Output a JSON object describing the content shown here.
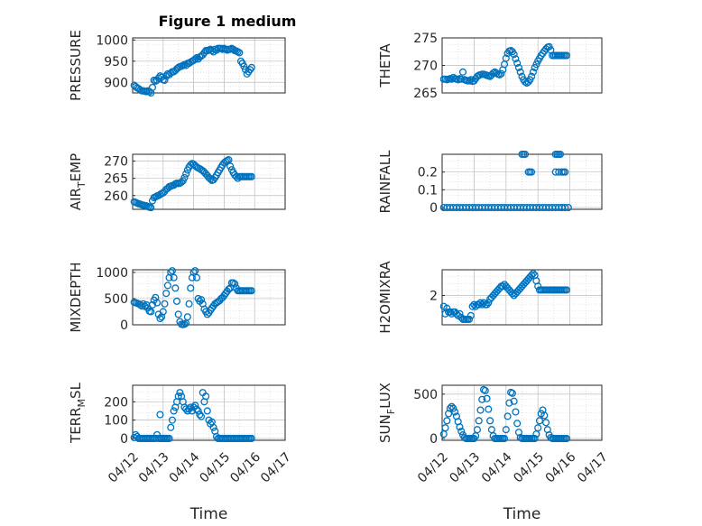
{
  "figure_title": "Figure 1 medium",
  "colors": {
    "marker": "#0072BD",
    "axis": "#262626",
    "grid": "#D0D0D0"
  },
  "chart_data": [
    {
      "type": "scatter",
      "ylabel": "PRESSURE",
      "ylabel_sub": "",
      "yticks": [
        900,
        950,
        1000
      ],
      "ylim": [
        875,
        1005
      ],
      "xticks": [],
      "xlabel": "",
      "xlim": [
        0,
        5
      ],
      "x": [
        0.05,
        0.1,
        0.15,
        0.2,
        0.25,
        0.3,
        0.35,
        0.4,
        0.45,
        0.5,
        0.55,
        0.6,
        0.65,
        0.7,
        0.75,
        0.8,
        0.85,
        0.9,
        0.95,
        1.0,
        1.05,
        1.1,
        1.15,
        1.2,
        1.25,
        1.3,
        1.35,
        1.4,
        1.45,
        1.5,
        1.55,
        1.6,
        1.65,
        1.7,
        1.75,
        1.8,
        1.85,
        1.9,
        1.95,
        2.0,
        2.05,
        2.1,
        2.15,
        2.2,
        2.25,
        2.3,
        2.35,
        2.4,
        2.45,
        2.5,
        2.55,
        2.6,
        2.65,
        2.7,
        2.75,
        2.8,
        2.85,
        2.9,
        2.95,
        3.0,
        3.05,
        3.1,
        3.15,
        3.2,
        3.25,
        3.3,
        3.35,
        3.4,
        3.45,
        3.5,
        3.55,
        3.6,
        3.65,
        3.7,
        3.75,
        3.8,
        3.85,
        3.9
      ],
      "y": [
        893,
        890,
        887,
        885,
        882,
        880,
        880,
        879,
        878,
        880,
        878,
        875,
        888,
        905,
        903,
        905,
        910,
        915,
        912,
        906,
        905,
        915,
        920,
        918,
        922,
        925,
        925,
        928,
        932,
        935,
        937,
        938,
        940,
        942,
        940,
        945,
        945,
        948,
        950,
        952,
        955,
        958,
        955,
        960,
        962,
        965,
        970,
        975,
        975,
        976,
        978,
        975,
        972,
        978,
        976,
        980,
        980,
        980,
        978,
        980,
        978,
        976,
        978,
        978,
        980,
        978,
        975,
        974,
        972,
        970,
        950,
        945,
        938,
        930,
        920,
        925,
        930,
        935
      ]
    },
    {
      "type": "scatter",
      "ylabel": "THETA",
      "ylabel_sub": "",
      "yticks": [
        265,
        270,
        275
      ],
      "ylim": [
        265,
        275
      ],
      "xticks": [],
      "xlabel": "",
      "xlim": [
        0,
        5
      ],
      "x": [
        0.05,
        0.1,
        0.15,
        0.2,
        0.25,
        0.3,
        0.35,
        0.4,
        0.45,
        0.5,
        0.55,
        0.6,
        0.65,
        0.7,
        0.75,
        0.8,
        0.85,
        0.9,
        0.95,
        1.0,
        1.05,
        1.1,
        1.15,
        1.2,
        1.25,
        1.3,
        1.35,
        1.4,
        1.45,
        1.5,
        1.55,
        1.6,
        1.65,
        1.7,
        1.75,
        1.8,
        1.85,
        1.9,
        1.95,
        2.0,
        2.05,
        2.1,
        2.15,
        2.2,
        2.25,
        2.3,
        2.35,
        2.4,
        2.45,
        2.5,
        2.55,
        2.6,
        2.65,
        2.7,
        2.75,
        2.8,
        2.85,
        2.9,
        2.95,
        3.0,
        3.05,
        3.1,
        3.15,
        3.2,
        3.25,
        3.3,
        3.35,
        3.4,
        3.45,
        3.5,
        3.55,
        3.6,
        3.65,
        3.7,
        3.75,
        3.8,
        3.85,
        3.9
      ],
      "y": [
        267.5,
        267.5,
        267.4,
        267.5,
        267.6,
        267.5,
        267.8,
        267.6,
        267.5,
        267.4,
        267.6,
        267.5,
        268.8,
        267.4,
        267.3,
        267.2,
        267.2,
        267.4,
        267.1,
        267.2,
        267.6,
        268.0,
        268.2,
        268.3,
        268.4,
        268.4,
        268.3,
        268.2,
        268.1,
        268.0,
        268.3,
        268.6,
        268.8,
        268.6,
        268.4,
        268.3,
        268.5,
        269.2,
        270.2,
        271.3,
        272.2,
        272.6,
        272.7,
        272.5,
        272.0,
        271.2,
        270.4,
        269.6,
        268.8,
        268.0,
        267.4,
        267.0,
        266.8,
        267.0,
        267.4,
        268.0,
        268.8,
        269.6,
        270.2,
        270.8,
        271.3,
        271.8,
        272.2,
        272.6,
        273.0,
        273.3,
        273.4,
        272.8,
        271.8,
        271.8,
        271.8,
        271.8,
        271.8,
        271.8,
        271.8,
        271.8,
        271.8,
        271.8
      ]
    },
    {
      "type": "scatter",
      "ylabel": "AIR",
      "ylabel_sub": "T",
      "ylabel_tail": "EMP",
      "yticks": [
        260,
        265,
        270
      ],
      "ylim": [
        256,
        272
      ],
      "xticks": [],
      "xlabel": "",
      "xlim": [
        0,
        5
      ],
      "x": [
        0.05,
        0.1,
        0.15,
        0.2,
        0.25,
        0.3,
        0.35,
        0.4,
        0.45,
        0.5,
        0.55,
        0.6,
        0.65,
        0.7,
        0.75,
        0.8,
        0.85,
        0.9,
        0.95,
        1.0,
        1.05,
        1.1,
        1.15,
        1.2,
        1.25,
        1.3,
        1.35,
        1.4,
        1.45,
        1.5,
        1.55,
        1.6,
        1.65,
        1.7,
        1.75,
        1.8,
        1.85,
        1.9,
        1.95,
        2.0,
        2.05,
        2.1,
        2.15,
        2.2,
        2.25,
        2.3,
        2.35,
        2.4,
        2.45,
        2.5,
        2.55,
        2.6,
        2.65,
        2.7,
        2.75,
        2.8,
        2.85,
        2.9,
        2.95,
        3.0,
        3.05,
        3.1,
        3.15,
        3.2,
        3.25,
        3.3,
        3.35,
        3.4,
        3.45,
        3.5,
        3.55,
        3.6,
        3.65,
        3.7,
        3.75,
        3.8,
        3.85,
        3.9
      ],
      "y": [
        258.2,
        258.0,
        257.8,
        257.6,
        257.5,
        257.3,
        257.2,
        257.1,
        257.0,
        256.8,
        256.6,
        256.5,
        258.5,
        259.4,
        259.6,
        259.9,
        260.0,
        260.3,
        260.6,
        260.8,
        261.2,
        261.8,
        262.1,
        262.6,
        262.7,
        262.9,
        263.0,
        263.4,
        263.6,
        263.5,
        263.6,
        263.9,
        264.3,
        265.2,
        266.3,
        267.4,
        268.3,
        268.9,
        269.3,
        269.1,
        268.7,
        268.3,
        268.0,
        267.8,
        267.5,
        267.2,
        266.8,
        266.3,
        265.8,
        265.2,
        264.8,
        264.4,
        264.6,
        265.2,
        265.9,
        266.7,
        267.4,
        268.2,
        268.9,
        269.5,
        269.9,
        270.2,
        270.4,
        268.5,
        267.5,
        266.7,
        266.0,
        265.5,
        265.0,
        265.5,
        265.5,
        265.5,
        265.5,
        265.5,
        265.5,
        265.5,
        265.5,
        265.5
      ]
    },
    {
      "type": "scatter",
      "ylabel": "RAINFALL",
      "ylabel_sub": "",
      "yticks": [
        0,
        0.1,
        0.2
      ],
      "ylim": [
        -0.01,
        0.3
      ],
      "xticks": [],
      "xlabel": "",
      "xlim": [
        0,
        5
      ],
      "x": [
        0.05,
        0.15,
        0.25,
        0.35,
        0.45,
        0.55,
        0.65,
        0.75,
        0.85,
        0.95,
        1.05,
        1.15,
        1.25,
        1.35,
        1.45,
        1.55,
        1.65,
        1.75,
        1.85,
        1.95,
        2.05,
        2.15,
        2.25,
        2.35,
        2.45,
        2.55,
        2.65,
        2.75,
        2.85,
        2.95,
        3.05,
        3.15,
        3.25,
        3.35,
        3.45,
        3.55,
        3.65,
        3.75,
        3.85,
        3.95,
        2.5,
        2.55,
        2.6,
        2.7,
        2.75,
        2.8,
        3.55,
        3.6,
        3.65,
        3.7,
        3.75,
        3.8,
        3.85,
        3.55,
        3.65,
        3.75
      ],
      "y": [
        0,
        0,
        0,
        0,
        0,
        0,
        0,
        0,
        0,
        0,
        0,
        0,
        0,
        0,
        0,
        0,
        0,
        0,
        0,
        0,
        0,
        0,
        0,
        0,
        0,
        0,
        0,
        0,
        0,
        0,
        0,
        0,
        0,
        0,
        0,
        0,
        0,
        0,
        0,
        0,
        0.3,
        0.3,
        0.3,
        0.2,
        0.2,
        0.2,
        0.3,
        0.3,
        0.3,
        0.3,
        0.2,
        0.2,
        0.2,
        0.2,
        0.2,
        0
      ]
    },
    {
      "type": "scatter",
      "ylabel": "MIXDEPTH",
      "ylabel_sub": "",
      "yticks": [
        0,
        500,
        1000
      ],
      "ylim": [
        0,
        1050
      ],
      "xticks": [],
      "xlabel": "",
      "xlim": [
        0,
        5
      ],
      "x": [
        0.05,
        0.1,
        0.15,
        0.2,
        0.25,
        0.3,
        0.35,
        0.4,
        0.45,
        0.5,
        0.55,
        0.6,
        0.65,
        0.7,
        0.75,
        0.8,
        0.85,
        0.9,
        0.95,
        1.0,
        1.05,
        1.1,
        1.15,
        1.2,
        1.25,
        1.3,
        1.35,
        1.4,
        1.45,
        1.5,
        1.55,
        1.6,
        1.65,
        1.7,
        1.75,
        1.8,
        1.85,
        1.9,
        1.95,
        2.0,
        2.05,
        2.1,
        2.15,
        2.2,
        2.25,
        2.3,
        2.35,
        2.4,
        2.45,
        2.5,
        2.55,
        2.6,
        2.65,
        2.7,
        2.75,
        2.8,
        2.85,
        2.9,
        2.95,
        3.0,
        3.05,
        3.1,
        3.15,
        3.2,
        3.25,
        3.3,
        3.35,
        3.4,
        3.45,
        3.5,
        3.55,
        3.6,
        3.65,
        3.7,
        3.75,
        3.8,
        3.85,
        3.9
      ],
      "y": [
        430,
        420,
        410,
        400,
        380,
        360,
        400,
        350,
        380,
        320,
        260,
        250,
        380,
        470,
        520,
        420,
        200,
        120,
        150,
        250,
        400,
        600,
        750,
        900,
        1000,
        1030,
        900,
        700,
        450,
        200,
        60,
        10,
        5,
        10,
        30,
        150,
        400,
        700,
        900,
        1000,
        1030,
        900,
        500,
        450,
        480,
        400,
        300,
        250,
        200,
        230,
        280,
        320,
        360,
        400,
        420,
        440,
        460,
        500,
        520,
        560,
        600,
        640,
        680,
        700,
        800,
        800,
        780,
        700,
        650,
        650,
        650,
        650,
        650,
        650,
        650,
        650,
        650,
        650
      ]
    },
    {
      "type": "scatter",
      "ylabel": "H2OMIXRA",
      "ylabel_sub": "",
      "yticks": [
        2
      ],
      "ylim": [
        0.4,
        3.4
      ],
      "xticks": [],
      "xlabel": "",
      "xlim": [
        0,
        5
      ],
      "x": [
        0.05,
        0.1,
        0.15,
        0.2,
        0.25,
        0.3,
        0.35,
        0.4,
        0.45,
        0.5,
        0.55,
        0.6,
        0.65,
        0.7,
        0.75,
        0.8,
        0.85,
        0.9,
        0.95,
        1.0,
        1.05,
        1.1,
        1.15,
        1.2,
        1.25,
        1.3,
        1.35,
        1.4,
        1.45,
        1.5,
        1.55,
        1.6,
        1.65,
        1.7,
        1.75,
        1.8,
        1.85,
        1.9,
        1.95,
        2.0,
        2.05,
        2.1,
        2.15,
        2.2,
        2.25,
        2.3,
        2.35,
        2.4,
        2.45,
        2.5,
        2.55,
        2.6,
        2.65,
        2.7,
        2.75,
        2.8,
        2.85,
        2.9,
        2.95,
        3.0,
        3.05,
        3.1,
        3.15,
        3.2,
        3.25,
        3.3,
        3.35,
        3.4,
        3.45,
        3.5,
        3.55,
        3.6,
        3.65,
        3.7,
        3.75,
        3.8,
        3.85,
        3.9
      ],
      "y": [
        1.4,
        1.0,
        1.3,
        1.1,
        1.1,
        1.0,
        1.1,
        1.1,
        1.0,
        0.9,
        1.0,
        0.8,
        0.7,
        0.7,
        0.7,
        0.7,
        0.7,
        0.9,
        1.4,
        1.5,
        1.4,
        1.5,
        1.5,
        1.6,
        1.5,
        1.6,
        1.5,
        1.5,
        1.6,
        1.8,
        1.9,
        2.0,
        2.1,
        2.2,
        2.3,
        2.4,
        2.5,
        2.5,
        2.6,
        2.5,
        2.4,
        2.3,
        2.2,
        2.1,
        2.0,
        2.1,
        2.2,
        2.3,
        2.4,
        2.5,
        2.6,
        2.7,
        2.8,
        2.9,
        3.0,
        3.1,
        3.2,
        3.1,
        2.8,
        2.5,
        2.3,
        2.3,
        2.3,
        2.3,
        2.3,
        2.3,
        2.3,
        2.3,
        2.3,
        2.3,
        2.3,
        2.3,
        2.3,
        2.3,
        2.3,
        2.3,
        2.3,
        2.3
      ]
    },
    {
      "type": "scatter",
      "ylabel": "TERR",
      "ylabel_sub": "M",
      "ylabel_tail": "SL",
      "yticks": [
        0,
        100,
        200
      ],
      "ylim": [
        -10,
        290
      ],
      "xticks": [
        "04/12",
        "04/13",
        "04/14",
        "04/15",
        "04/16",
        "04/17"
      ],
      "xlabel": "Time",
      "xlim": [
        0,
        5
      ],
      "x": [
        0.05,
        0.1,
        0.15,
        0.2,
        0.25,
        0.3,
        0.35,
        0.4,
        0.45,
        0.5,
        0.55,
        0.6,
        0.65,
        0.7,
        0.75,
        0.8,
        0.85,
        0.9,
        0.95,
        1.0,
        1.05,
        1.1,
        1.15,
        1.2,
        1.25,
        1.3,
        1.35,
        1.4,
        1.45,
        1.5,
        1.55,
        1.6,
        1.65,
        1.7,
        1.75,
        1.8,
        1.85,
        1.9,
        1.95,
        2.0,
        2.05,
        2.1,
        2.15,
        2.2,
        2.25,
        2.3,
        2.35,
        2.4,
        2.45,
        2.5,
        2.55,
        2.6,
        2.65,
        2.7,
        2.75,
        2.8,
        2.85,
        2.9,
        2.95,
        3.0,
        3.05,
        3.1,
        3.15,
        3.2,
        3.25,
        3.3,
        3.35,
        3.4,
        3.45,
        3.5,
        3.55,
        3.6,
        3.65,
        3.7,
        3.75,
        3.8,
        3.85,
        3.9,
        0.9,
        0.95,
        1.0,
        1.05,
        1.1
      ],
      "y": [
        5,
        20,
        10,
        0,
        0,
        0,
        0,
        0,
        0,
        0,
        0,
        0,
        0,
        0,
        0,
        20,
        0,
        0,
        0,
        0,
        0,
        0,
        0,
        0,
        60,
        100,
        150,
        170,
        200,
        230,
        250,
        230,
        200,
        170,
        160,
        150,
        160,
        170,
        150,
        170,
        180,
        160,
        150,
        130,
        120,
        250,
        200,
        230,
        150,
        100,
        80,
        90,
        60,
        40,
        10,
        0,
        0,
        0,
        0,
        0,
        0,
        0,
        0,
        0,
        0,
        0,
        0,
        0,
        0,
        0,
        0,
        0,
        0,
        0,
        0,
        0,
        0,
        0,
        130,
        0,
        0,
        0,
        0
      ]
    },
    {
      "type": "scatter",
      "ylabel": "SUN",
      "ylabel_sub": "F",
      "ylabel_tail": "LUX",
      "yticks": [
        0,
        500
      ],
      "ylim": [
        -20,
        600
      ],
      "xticks": [
        "04/12",
        "04/13",
        "04/14",
        "04/15",
        "04/16",
        "04/17"
      ],
      "xlabel": "Time",
      "xlim": [
        0,
        5
      ],
      "x": [
        0.05,
        0.1,
        0.15,
        0.2,
        0.25,
        0.3,
        0.35,
        0.4,
        0.45,
        0.5,
        0.55,
        0.6,
        0.65,
        0.7,
        0.75,
        0.8,
        0.85,
        0.9,
        0.95,
        1.0,
        1.05,
        1.1,
        1.15,
        1.2,
        1.25,
        1.3,
        1.35,
        1.4,
        1.45,
        1.5,
        1.55,
        1.6,
        1.65,
        1.7,
        1.75,
        1.8,
        1.85,
        1.9,
        1.95,
        2.0,
        2.05,
        2.1,
        2.15,
        2.2,
        2.25,
        2.3,
        2.35,
        2.4,
        2.45,
        2.5,
        2.55,
        2.6,
        2.65,
        2.7,
        2.75,
        2.8,
        2.85,
        2.9,
        2.95,
        3.0,
        3.05,
        3.1,
        3.15,
        3.2,
        3.25,
        3.3,
        3.35,
        3.4,
        3.45,
        3.5,
        3.55,
        3.6,
        3.65,
        3.7,
        3.75,
        3.8,
        3.85,
        3.9
      ],
      "y": [
        50,
        120,
        200,
        280,
        340,
        360,
        340,
        300,
        250,
        190,
        130,
        80,
        40,
        10,
        0,
        0,
        0,
        0,
        0,
        0,
        30,
        100,
        200,
        320,
        440,
        550,
        540,
        450,
        330,
        200,
        100,
        30,
        0,
        0,
        0,
        0,
        0,
        0,
        0,
        100,
        250,
        400,
        520,
        510,
        420,
        300,
        170,
        70,
        10,
        0,
        0,
        0,
        0,
        0,
        0,
        0,
        0,
        0,
        50,
        120,
        200,
        280,
        320,
        260,
        180,
        100,
        40,
        10,
        0,
        0,
        0,
        0,
        0,
        0,
        0,
        0,
        0,
        0
      ]
    }
  ]
}
